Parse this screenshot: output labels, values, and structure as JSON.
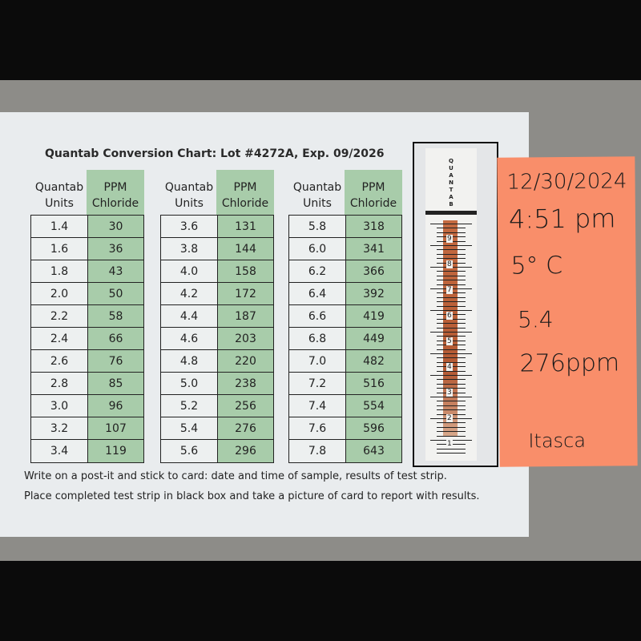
{
  "card": {
    "title": "Quantab Conversion Chart: Lot #4272A, Exp. 09/2026",
    "headers": {
      "units": "Quantab Units",
      "ppm": "PPM Chloride"
    },
    "tables": [
      {
        "rows": [
          [
            "1.4",
            "30"
          ],
          [
            "1.6",
            "36"
          ],
          [
            "1.8",
            "43"
          ],
          [
            "2.0",
            "50"
          ],
          [
            "2.2",
            "58"
          ],
          [
            "2.4",
            "66"
          ],
          [
            "2.6",
            "76"
          ],
          [
            "2.8",
            "85"
          ],
          [
            "3.0",
            "96"
          ],
          [
            "3.2",
            "107"
          ],
          [
            "3.4",
            "119"
          ]
        ]
      },
      {
        "rows": [
          [
            "3.6",
            "131"
          ],
          [
            "3.8",
            "144"
          ],
          [
            "4.0",
            "158"
          ],
          [
            "4.2",
            "172"
          ],
          [
            "4.4",
            "187"
          ],
          [
            "4.6",
            "203"
          ],
          [
            "4.8",
            "220"
          ],
          [
            "5.0",
            "238"
          ],
          [
            "5.2",
            "256"
          ],
          [
            "5.4",
            "276"
          ],
          [
            "5.6",
            "296"
          ]
        ]
      },
      {
        "rows": [
          [
            "5.8",
            "318"
          ],
          [
            "6.0",
            "341"
          ],
          [
            "6.2",
            "366"
          ],
          [
            "6.4",
            "392"
          ],
          [
            "6.6",
            "419"
          ],
          [
            "6.8",
            "449"
          ],
          [
            "7.0",
            "482"
          ],
          [
            "7.2",
            "516"
          ],
          [
            "7.4",
            "554"
          ],
          [
            "7.6",
            "596"
          ],
          [
            "7.8",
            "643"
          ]
        ]
      }
    ],
    "footer": [
      "Write on a post-it and stick to card: date and time of sample, results of test strip.",
      "Place completed test strip in black box and take a picture of card to report with results."
    ]
  },
  "strip": {
    "brand": "QUANTAB",
    "scale": [
      "9",
      "8",
      "7",
      "6",
      "5",
      "4",
      "3",
      "2",
      "1"
    ],
    "reading": 5.4
  },
  "postit": {
    "date": "12/30/2024",
    "time": "4:51 pm",
    "temp": "5° C",
    "units": "5.4",
    "ppm": "276ppm",
    "location": "Itasca",
    "color": "#f98e6a"
  },
  "colors": {
    "green": "#a8ccaa"
  }
}
